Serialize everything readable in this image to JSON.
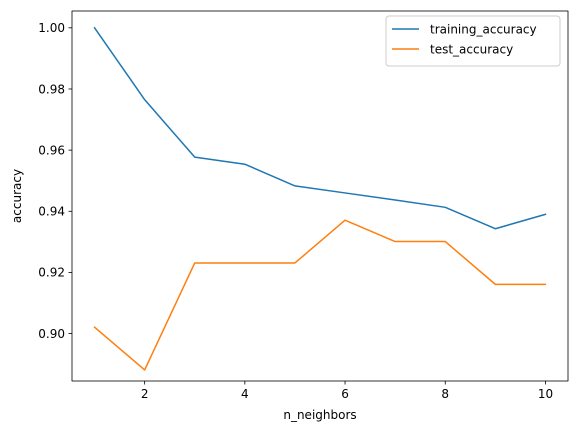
{
  "chart_data": {
    "type": "line",
    "title": "",
    "xlabel": "n_neighbors",
    "ylabel": "accuracy",
    "x": [
      1,
      2,
      3,
      4,
      5,
      6,
      7,
      8,
      9,
      10
    ],
    "xlim": [
      0.55,
      10.45
    ],
    "ylim": [
      0.8845,
      1.0055
    ],
    "xticks": [
      2,
      4,
      6,
      8,
      10
    ],
    "yticks": [
      0.9,
      0.92,
      0.94,
      0.96,
      0.98,
      1.0
    ],
    "ytick_labels": [
      "0.90",
      "0.92",
      "0.94",
      "0.96",
      "0.98",
      "1.00"
    ],
    "grid": false,
    "legend_position": "top-right",
    "series": [
      {
        "name": "training_accuracy",
        "color": "#1f77b4",
        "values": [
          1.0,
          0.9765,
          0.9577,
          0.9554,
          0.9483,
          0.946,
          0.9437,
          0.9413,
          0.9343,
          0.939
        ]
      },
      {
        "name": "test_accuracy",
        "color": "#ff7f0e",
        "values": [
          0.9021,
          0.8881,
          0.9231,
          0.9231,
          0.9231,
          0.9371,
          0.9301,
          0.9301,
          0.9161,
          0.9161
        ]
      }
    ]
  }
}
